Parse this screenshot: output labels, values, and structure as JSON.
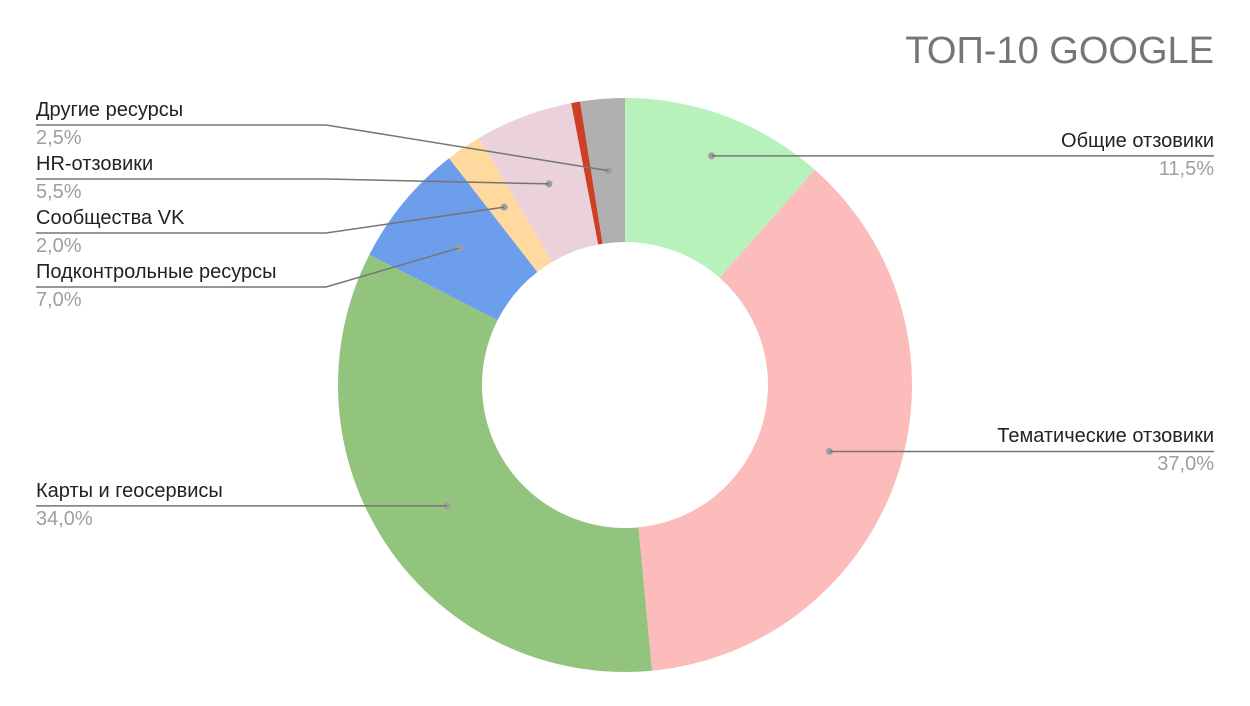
{
  "chart_data": {
    "type": "pie",
    "donut": true,
    "title": "ТОП-10 GOOGLE",
    "slices": [
      {
        "label": "Общие отзовики",
        "value": 11.5,
        "value_label": "11,5%",
        "color": "#b7f2bd"
      },
      {
        "label": "Тематические отзовики",
        "value": 37.0,
        "value_label": "37,0%",
        "color": "#fbbcbb"
      },
      {
        "label": "Карты и геосервисы",
        "value": 34.0,
        "value_label": "34,0%",
        "color": "#93c47d"
      },
      {
        "label": "Подконтрольные ресурсы",
        "value": 7.0,
        "value_label": "7,0%",
        "color": "#6d9eeb"
      },
      {
        "label": "Сообщества VK",
        "value": 2.0,
        "value_label": "2,0%",
        "color": "#ffd99e"
      },
      {
        "label": "HR-отзовики",
        "value": 5.5,
        "value_label": "5,5%",
        "color": "#ead1dc"
      },
      {
        "label": "",
        "value": 0.5,
        "value_label": "",
        "color": "#cc4125"
      },
      {
        "label": "Другие ресурсы",
        "value": 2.5,
        "value_label": "2,5%",
        "color": "#b0b0b0"
      }
    ],
    "legend": "callout-labels"
  }
}
